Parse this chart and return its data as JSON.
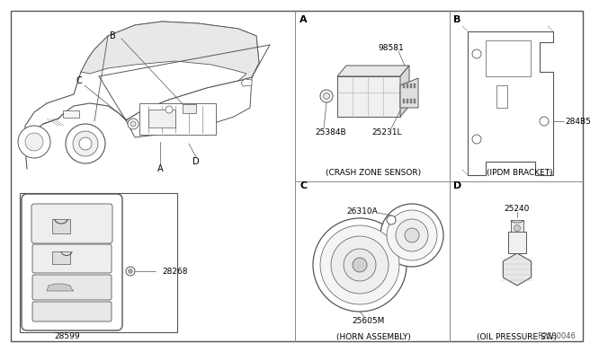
{
  "bg_color": "#ffffff",
  "line_color": "#555555",
  "ref_number": "R2530046",
  "divider_color": "#888888",
  "sections": {
    "A_label": "A",
    "A_caption": "(CRASH ZONE SENSOR)",
    "A_parts": [
      "98581",
      "25384B",
      "25231L"
    ],
    "B_label": "B",
    "B_caption": "(IPDΜ BRACKET)",
    "B_parts": [
      "284B5"
    ],
    "C_label": "C",
    "C_caption": "(HORN ASSEMBLY)",
    "C_parts": [
      "26310A",
      "25605M"
    ],
    "D_label": "D",
    "D_caption": "(OIL PRESSURE SW)",
    "D_parts": [
      "25240"
    ]
  },
  "keyfob_parts": [
    "28268",
    "28599"
  ]
}
